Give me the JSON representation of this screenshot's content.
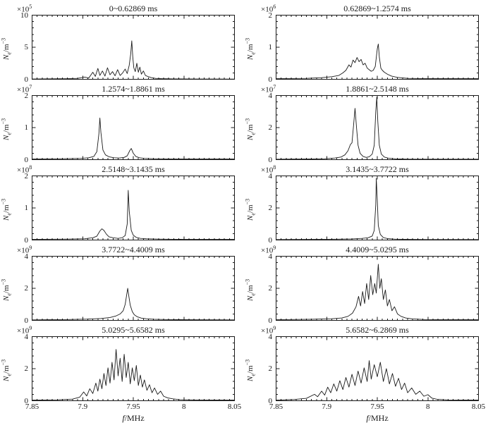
{
  "figure": {
    "bg": "#ffffff",
    "line_color": "#1a1a1a",
    "axis_color": "#1a1a1a",
    "x_range": [
      7.85,
      8.05
    ],
    "x_ticks": [
      7.85,
      7.9,
      7.95,
      8,
      8.05
    ],
    "x_tick_labels": [
      "7.85",
      "7.9",
      "7.95",
      "8",
      "8.05"
    ],
    "x_minor_step": 0.005,
    "xlabel": {
      "var": "f",
      "unit": "/MHz"
    },
    "ylabel": {
      "var": "N",
      "sub": "e",
      "unit": "/m",
      "sup": "−3"
    },
    "grid": "off",
    "legend": "none"
  },
  "chart_data": [
    {
      "type": "line",
      "title": "0~0.62869 ms",
      "scale": {
        "base": "×10",
        "exp": "5"
      },
      "ylim": [
        0,
        10
      ],
      "yticks": [
        0,
        5,
        10
      ],
      "points": [
        [
          7.85,
          0.05
        ],
        [
          7.87,
          0.08
        ],
        [
          7.885,
          0.1
        ],
        [
          7.895,
          0.15
        ],
        [
          7.902,
          0.35
        ],
        [
          7.906,
          0.2
        ],
        [
          7.91,
          1.1
        ],
        [
          7.9125,
          0.45
        ],
        [
          7.915,
          1.7
        ],
        [
          7.917,
          0.6
        ],
        [
          7.9195,
          1.3
        ],
        [
          7.922,
          0.5
        ],
        [
          7.9245,
          1.8
        ],
        [
          7.927,
          0.7
        ],
        [
          7.9295,
          1.2
        ],
        [
          7.932,
          0.55
        ],
        [
          7.9345,
          1.5
        ],
        [
          7.937,
          0.6
        ],
        [
          7.9395,
          1.0
        ],
        [
          7.942,
          1.6
        ],
        [
          7.944,
          0.9
        ],
        [
          7.946,
          2.2
        ],
        [
          7.9475,
          4.0
        ],
        [
          7.9485,
          6.0
        ],
        [
          7.9495,
          3.5
        ],
        [
          7.9505,
          1.8
        ],
        [
          7.952,
          1.2
        ],
        [
          7.9535,
          2.5
        ],
        [
          7.955,
          1.1
        ],
        [
          7.9565,
          1.9
        ],
        [
          7.958,
          0.8
        ],
        [
          7.96,
          1.3
        ],
        [
          7.962,
          0.6
        ],
        [
          7.965,
          0.4
        ],
        [
          7.968,
          0.25
        ],
        [
          7.972,
          0.15
        ],
        [
          7.978,
          0.1
        ],
        [
          7.99,
          0.06
        ],
        [
          8.01,
          0.05
        ],
        [
          8.05,
          0.04
        ]
      ]
    },
    {
      "type": "line",
      "title": "0.62869~1.2574 ms",
      "scale": {
        "base": "×10",
        "exp": "6"
      },
      "ylim": [
        0,
        2
      ],
      "yticks": [
        0,
        1,
        2
      ],
      "points": [
        [
          7.85,
          0.02
        ],
        [
          7.88,
          0.03
        ],
        [
          7.895,
          0.05
        ],
        [
          7.905,
          0.08
        ],
        [
          7.912,
          0.12
        ],
        [
          7.916,
          0.2
        ],
        [
          7.919,
          0.28
        ],
        [
          7.922,
          0.45
        ],
        [
          7.924,
          0.38
        ],
        [
          7.926,
          0.6
        ],
        [
          7.928,
          0.52
        ],
        [
          7.93,
          0.68
        ],
        [
          7.932,
          0.55
        ],
        [
          7.934,
          0.62
        ],
        [
          7.936,
          0.45
        ],
        [
          7.938,
          0.5
        ],
        [
          7.94,
          0.35
        ],
        [
          7.942,
          0.3
        ],
        [
          7.944,
          0.25
        ],
        [
          7.946,
          0.28
        ],
        [
          7.948,
          0.4
        ],
        [
          7.95,
          0.95
        ],
        [
          7.951,
          1.1
        ],
        [
          7.952,
          0.7
        ],
        [
          7.9535,
          0.35
        ],
        [
          7.955,
          0.28
        ],
        [
          7.957,
          0.22
        ],
        [
          7.96,
          0.16
        ],
        [
          7.964,
          0.1
        ],
        [
          7.97,
          0.06
        ],
        [
          7.98,
          0.03
        ],
        [
          8.0,
          0.02
        ],
        [
          8.05,
          0.02
        ]
      ]
    },
    {
      "type": "line",
      "title": "1.2574~1.8861 ms",
      "scale": {
        "base": "×10",
        "exp": "7"
      },
      "ylim": [
        0,
        2
      ],
      "yticks": [
        0,
        1,
        2
      ],
      "points": [
        [
          7.85,
          0.02
        ],
        [
          7.88,
          0.03
        ],
        [
          7.898,
          0.04
        ],
        [
          7.906,
          0.06
        ],
        [
          7.911,
          0.1
        ],
        [
          7.914,
          0.25
        ],
        [
          7.916,
          0.8
        ],
        [
          7.917,
          1.3
        ],
        [
          7.918,
          0.85
        ],
        [
          7.92,
          0.3
        ],
        [
          7.9225,
          0.15
        ],
        [
          7.926,
          0.09
        ],
        [
          7.931,
          0.06
        ],
        [
          7.936,
          0.05
        ],
        [
          7.941,
          0.07
        ],
        [
          7.944,
          0.12
        ],
        [
          7.9465,
          0.28
        ],
        [
          7.948,
          0.35
        ],
        [
          7.95,
          0.2
        ],
        [
          7.9525,
          0.1
        ],
        [
          7.956,
          0.06
        ],
        [
          7.961,
          0.04
        ],
        [
          7.97,
          0.03
        ],
        [
          7.99,
          0.02
        ],
        [
          8.02,
          0.02
        ],
        [
          8.05,
          0.02
        ]
      ]
    },
    {
      "type": "line",
      "title": "1.8861~2.5148 ms",
      "scale": {
        "base": "×10",
        "exp": "7"
      },
      "ylim": [
        0,
        4
      ],
      "yticks": [
        0,
        2,
        4
      ],
      "points": [
        [
          7.85,
          0.03
        ],
        [
          7.88,
          0.04
        ],
        [
          7.898,
          0.06
        ],
        [
          7.908,
          0.1
        ],
        [
          7.914,
          0.16
        ],
        [
          7.918,
          0.3
        ],
        [
          7.921,
          0.55
        ],
        [
          7.9235,
          0.95
        ],
        [
          7.925,
          1.05
        ],
        [
          7.9265,
          2.1
        ],
        [
          7.928,
          3.2
        ],
        [
          7.9295,
          2.0
        ],
        [
          7.931,
          0.9
        ],
        [
          7.933,
          0.4
        ],
        [
          7.936,
          0.2
        ],
        [
          7.939,
          0.14
        ],
        [
          7.942,
          0.18
        ],
        [
          7.945,
          0.35
        ],
        [
          7.947,
          0.9
        ],
        [
          7.9485,
          3.0
        ],
        [
          7.9495,
          3.9
        ],
        [
          7.9505,
          2.4
        ],
        [
          7.952,
          0.9
        ],
        [
          7.954,
          0.35
        ],
        [
          7.957,
          0.16
        ],
        [
          7.961,
          0.09
        ],
        [
          7.968,
          0.05
        ],
        [
          7.98,
          0.03
        ],
        [
          8.005,
          0.03
        ],
        [
          8.05,
          0.03
        ]
      ]
    },
    {
      "type": "line",
      "title": "2.5148~3.1435 ms",
      "scale": {
        "base": "×10",
        "exp": "8"
      },
      "ylim": [
        0,
        2
      ],
      "yticks": [
        0,
        1,
        2
      ],
      "points": [
        [
          7.85,
          0.02
        ],
        [
          7.885,
          0.03
        ],
        [
          7.902,
          0.04
        ],
        [
          7.91,
          0.07
        ],
        [
          7.914,
          0.12
        ],
        [
          7.917,
          0.28
        ],
        [
          7.919,
          0.35
        ],
        [
          7.921,
          0.3
        ],
        [
          7.9235,
          0.18
        ],
        [
          7.926,
          0.1
        ],
        [
          7.93,
          0.07
        ],
        [
          7.935,
          0.05
        ],
        [
          7.939,
          0.07
        ],
        [
          7.942,
          0.14
        ],
        [
          7.944,
          0.5
        ],
        [
          7.945,
          1.55
        ],
        [
          7.946,
          0.9
        ],
        [
          7.948,
          0.3
        ],
        [
          7.95,
          0.15
        ],
        [
          7.953,
          0.08
        ],
        [
          7.957,
          0.05
        ],
        [
          7.963,
          0.04
        ],
        [
          7.975,
          0.03
        ],
        [
          8.0,
          0.02
        ],
        [
          8.05,
          0.02
        ]
      ]
    },
    {
      "type": "line",
      "title": "3.1435~3.7722 ms",
      "scale": {
        "base": "×10",
        "exp": "8"
      },
      "ylim": [
        0,
        4
      ],
      "yticks": [
        0,
        2,
        4
      ],
      "points": [
        [
          7.85,
          0.03
        ],
        [
          7.89,
          0.04
        ],
        [
          7.91,
          0.05
        ],
        [
          7.925,
          0.07
        ],
        [
          7.935,
          0.1
        ],
        [
          7.941,
          0.14
        ],
        [
          7.945,
          0.25
        ],
        [
          7.947,
          0.6
        ],
        [
          7.9485,
          2.2
        ],
        [
          7.949,
          3.85
        ],
        [
          7.95,
          2.5
        ],
        [
          7.951,
          0.9
        ],
        [
          7.953,
          0.35
        ],
        [
          7.956,
          0.15
        ],
        [
          7.96,
          0.09
        ],
        [
          7.967,
          0.06
        ],
        [
          7.978,
          0.04
        ],
        [
          8.0,
          0.03
        ],
        [
          8.05,
          0.03
        ]
      ]
    },
    {
      "type": "line",
      "title": "3.7722~4.4009 ms",
      "scale": {
        "base": "×10",
        "exp": "9"
      },
      "ylim": [
        0,
        4
      ],
      "yticks": [
        0,
        2,
        4
      ],
      "points": [
        [
          7.85,
          0.03
        ],
        [
          7.885,
          0.05
        ],
        [
          7.905,
          0.08
        ],
        [
          7.918,
          0.12
        ],
        [
          7.927,
          0.18
        ],
        [
          7.933,
          0.28
        ],
        [
          7.937,
          0.4
        ],
        [
          7.94,
          0.6
        ],
        [
          7.942,
          1.0
        ],
        [
          7.9435,
          1.6
        ],
        [
          7.9445,
          2.0
        ],
        [
          7.9455,
          1.55
        ],
        [
          7.947,
          0.95
        ],
        [
          7.949,
          0.55
        ],
        [
          7.951,
          0.35
        ],
        [
          7.954,
          0.22
        ],
        [
          7.958,
          0.14
        ],
        [
          7.963,
          0.1
        ],
        [
          7.97,
          0.07
        ],
        [
          7.982,
          0.05
        ],
        [
          8.005,
          0.04
        ],
        [
          8.05,
          0.03
        ]
      ]
    },
    {
      "type": "line",
      "title": "4.4009~5.0295 ms",
      "scale": {
        "base": "×10",
        "exp": "9"
      },
      "ylim": [
        0,
        4
      ],
      "yticks": [
        0,
        2,
        4
      ],
      "points": [
        [
          7.85,
          0.04
        ],
        [
          7.885,
          0.07
        ],
        [
          7.905,
          0.1
        ],
        [
          7.915,
          0.15
        ],
        [
          7.921,
          0.25
        ],
        [
          7.9255,
          0.45
        ],
        [
          7.929,
          0.85
        ],
        [
          7.9315,
          1.5
        ],
        [
          7.9335,
          0.9
        ],
        [
          7.9355,
          1.8
        ],
        [
          7.9375,
          1.05
        ],
        [
          7.9395,
          2.3
        ],
        [
          7.9415,
          1.3
        ],
        [
          7.9435,
          2.8
        ],
        [
          7.9455,
          1.6
        ],
        [
          7.9475,
          2.3
        ],
        [
          7.949,
          1.7
        ],
        [
          7.951,
          3.5
        ],
        [
          7.9525,
          2.0
        ],
        [
          7.954,
          2.6
        ],
        [
          7.956,
          1.3
        ],
        [
          7.958,
          1.9
        ],
        [
          7.96,
          0.9
        ],
        [
          7.962,
          1.3
        ],
        [
          7.9645,
          0.6
        ],
        [
          7.967,
          0.85
        ],
        [
          7.97,
          0.4
        ],
        [
          7.9735,
          0.25
        ],
        [
          7.978,
          0.15
        ],
        [
          7.985,
          0.09
        ],
        [
          7.997,
          0.05
        ],
        [
          8.02,
          0.04
        ],
        [
          8.05,
          0.04
        ]
      ]
    },
    {
      "type": "line",
      "title": "5.0295~5.6582 ms",
      "scale": {
        "base": "×10",
        "exp": "9"
      },
      "ylim": [
        0,
        4
      ],
      "yticks": [
        0,
        2,
        4
      ],
      "points": [
        [
          7.85,
          0.04
        ],
        [
          7.875,
          0.06
        ],
        [
          7.89,
          0.1
        ],
        [
          7.897,
          0.22
        ],
        [
          7.901,
          0.55
        ],
        [
          7.904,
          0.3
        ],
        [
          7.907,
          0.75
        ],
        [
          7.91,
          0.45
        ],
        [
          7.913,
          1.1
        ],
        [
          7.915,
          0.6
        ],
        [
          7.917,
          1.35
        ],
        [
          7.919,
          0.75
        ],
        [
          7.921,
          1.7
        ],
        [
          7.923,
          0.95
        ],
        [
          7.925,
          2.05
        ],
        [
          7.927,
          1.1
        ],
        [
          7.929,
          2.4
        ],
        [
          7.931,
          1.3
        ],
        [
          7.933,
          3.2
        ],
        [
          7.935,
          1.55
        ],
        [
          7.937,
          2.65
        ],
        [
          7.939,
          1.2
        ],
        [
          7.941,
          2.9
        ],
        [
          7.943,
          1.45
        ],
        [
          7.945,
          2.4
        ],
        [
          7.947,
          1.05
        ],
        [
          7.949,
          2.05
        ],
        [
          7.951,
          1.25
        ],
        [
          7.953,
          2.2
        ],
        [
          7.955,
          0.95
        ],
        [
          7.957,
          1.6
        ],
        [
          7.959,
          0.85
        ],
        [
          7.961,
          1.3
        ],
        [
          7.9635,
          0.65
        ],
        [
          7.966,
          1.0
        ],
        [
          7.9685,
          0.5
        ],
        [
          7.971,
          0.8
        ],
        [
          7.974,
          0.4
        ],
        [
          7.977,
          0.6
        ],
        [
          7.98,
          0.28
        ],
        [
          7.984,
          0.18
        ],
        [
          7.989,
          0.12
        ],
        [
          7.996,
          0.07
        ],
        [
          8.01,
          0.05
        ],
        [
          8.05,
          0.04
        ]
      ]
    },
    {
      "type": "line",
      "title": "5.6582~6.2869 ms",
      "scale": {
        "base": "×10",
        "exp": "9"
      },
      "ylim": [
        0,
        4
      ],
      "yticks": [
        0,
        2,
        4
      ],
      "points": [
        [
          7.85,
          0.04
        ],
        [
          7.868,
          0.08
        ],
        [
          7.88,
          0.15
        ],
        [
          7.888,
          0.4
        ],
        [
          7.891,
          0.25
        ],
        [
          7.895,
          0.6
        ],
        [
          7.898,
          0.35
        ],
        [
          7.901,
          0.85
        ],
        [
          7.904,
          0.5
        ],
        [
          7.907,
          1.05
        ],
        [
          7.91,
          0.6
        ],
        [
          7.913,
          1.25
        ],
        [
          7.916,
          0.7
        ],
        [
          7.919,
          1.45
        ],
        [
          7.922,
          0.85
        ],
        [
          7.925,
          1.65
        ],
        [
          7.928,
          0.95
        ],
        [
          7.931,
          1.85
        ],
        [
          7.934,
          1.1
        ],
        [
          7.937,
          2.05
        ],
        [
          7.94,
          1.2
        ],
        [
          7.942,
          2.5
        ],
        [
          7.944,
          1.35
        ],
        [
          7.947,
          2.25
        ],
        [
          7.95,
          1.5
        ],
        [
          7.953,
          2.4
        ],
        [
          7.956,
          1.2
        ],
        [
          7.959,
          2.0
        ],
        [
          7.962,
          1.05
        ],
        [
          7.965,
          1.7
        ],
        [
          7.968,
          0.9
        ],
        [
          7.971,
          1.4
        ],
        [
          7.974,
          0.7
        ],
        [
          7.977,
          1.1
        ],
        [
          7.98,
          0.5
        ],
        [
          7.984,
          0.8
        ],
        [
          7.988,
          0.4
        ],
        [
          7.992,
          0.6
        ],
        [
          7.996,
          0.28
        ],
        [
          8.0,
          0.38
        ],
        [
          8.004,
          0.16
        ],
        [
          8.009,
          0.09
        ],
        [
          8.02,
          0.05
        ],
        [
          8.05,
          0.04
        ]
      ]
    }
  ]
}
